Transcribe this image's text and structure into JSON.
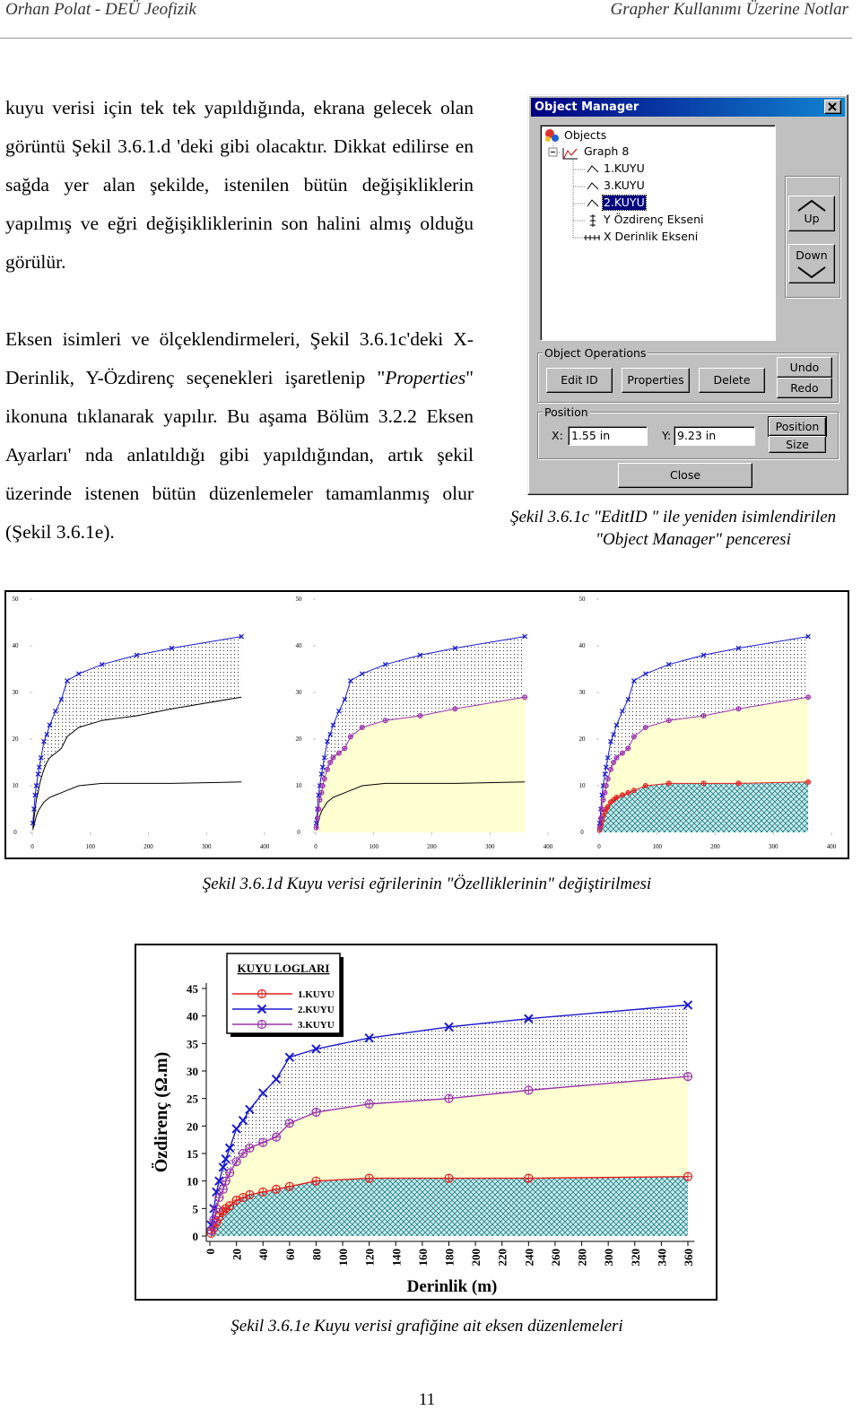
{
  "header": {
    "left": "Orhan Polat - DEÜ Jeofizik",
    "right": "Grapher Kullanımı Üzerine Notlar"
  },
  "paragraph1": "kuyu verisi için tek tek yapıldığında, ekrana gelecek olan görüntü Şekil 3.6.1.d 'deki gibi olacaktır. Dikkat edilirse en sağda yer alan şekilde, istenilen bütün değişikliklerin yapılmış ve eğri değişikliklerinin son halini almış olduğu görülür.",
  "paragraph2": [
    "Eksen isimleri ve ölçeklendirmeleri, Şekil 3.6.1c'deki X- Derinlik, Y-Özdirenç seçenekleri işaretlenip \"",
    "Properties",
    "\" ikonuna tıklanarak yapılır. Bu aşama Bölüm 3.2.2 Eksen Ayarları' nda anlatıldığı gibi yapıldığından, artık şekil üzerinde istenen bütün düzenlemeler tamamlanmış olur (Şekil 3.6.1e)."
  ],
  "object_manager": {
    "title": "Object Manager",
    "tree": [
      "Objects",
      "Graph 8",
      "1.KUYU",
      "3.KUYU",
      "2.KUYU",
      "Y Özdirenç Ekseni",
      "X Derinlik Ekseni"
    ],
    "up": "Up",
    "down": "Down",
    "operations_label": "Object Operations",
    "edit_id": "Edit ID",
    "properties": "Properties",
    "delete": "Delete",
    "undo": "Undo",
    "redo": "Redo",
    "position_label": "Position",
    "x_label": "X:",
    "x_value": "1.55 in",
    "y_label": "Y:",
    "y_value": "9.23 in",
    "position": "Position",
    "size": "Size",
    "close_button": "Close"
  },
  "figure_c_caption": [
    "Şekil 3.6.1c \"EditID \" ile yeniden isimlendirilen",
    "\"Object Manager\" penceresi"
  ],
  "figure_d": {
    "caption": "Şekil 3.6.1d  Kuyu verisi eğrilerinin \"Özelliklerinin\" değiştirilmesi",
    "xlim": [
      0,
      400
    ],
    "ylim": [
      0,
      50
    ],
    "xticks": [
      0,
      100,
      200,
      300,
      400
    ],
    "yticks": [
      0,
      10,
      20,
      30,
      40,
      50
    ],
    "panels": [
      {
        "styled": [
          false,
          true,
          false
        ]
      },
      {
        "styled": [
          false,
          true,
          true
        ]
      },
      {
        "styled": [
          true,
          true,
          true
        ]
      }
    ]
  },
  "chart_data": {
    "type": "line",
    "legend_title": "KUYU LOGLARI",
    "xlabel": "Derinlik (m)",
    "ylabel": "Özdirenç (Ω.m)",
    "x": [
      1,
      3,
      5,
      7,
      10,
      12,
      15,
      20,
      25,
      30,
      40,
      50,
      60,
      80,
      120,
      180,
      240,
      360
    ],
    "series": [
      {
        "name": "1.KUYU",
        "color": "#e02020",
        "marker": "circle-plus",
        "fill": "crosshatch",
        "values": [
          0.5,
          1.5,
          2.5,
          3.5,
          4.5,
          5,
          5.5,
          6.5,
          7,
          7.5,
          8,
          8.5,
          9,
          10,
          10.5,
          10.5,
          10.5,
          10.8
        ]
      },
      {
        "name": "2.KUYU",
        "color": "#1a1acc",
        "marker": "x",
        "fill": "dots",
        "values": [
          2,
          5,
          8,
          10,
          12.5,
          14,
          16,
          19.5,
          21,
          23,
          26,
          28.5,
          32.5,
          34,
          36,
          38,
          39.5,
          42
        ]
      },
      {
        "name": "3.KUYU",
        "color": "#9933aa",
        "marker": "circle-plus",
        "fill": "yellow",
        "values": [
          1,
          3,
          5,
          7,
          8.5,
          10,
          11.5,
          13.5,
          15,
          16,
          17,
          18,
          20.5,
          22.5,
          24,
          25,
          26.5,
          29
        ]
      }
    ],
    "xlim": [
      0,
      365
    ],
    "ylim": [
      0,
      46
    ],
    "xticks": [
      0,
      20,
      40,
      60,
      80,
      100,
      120,
      140,
      160,
      180,
      200,
      220,
      240,
      260,
      280,
      300,
      320,
      340,
      360
    ],
    "yticks": [
      0,
      5,
      10,
      15,
      20,
      25,
      30,
      35,
      40,
      45
    ]
  },
  "figure_e_caption": "Şekil 3.6.1e  Kuyu verisi grafiğine ait eksen düzenlemeleri",
  "page_number": "11"
}
